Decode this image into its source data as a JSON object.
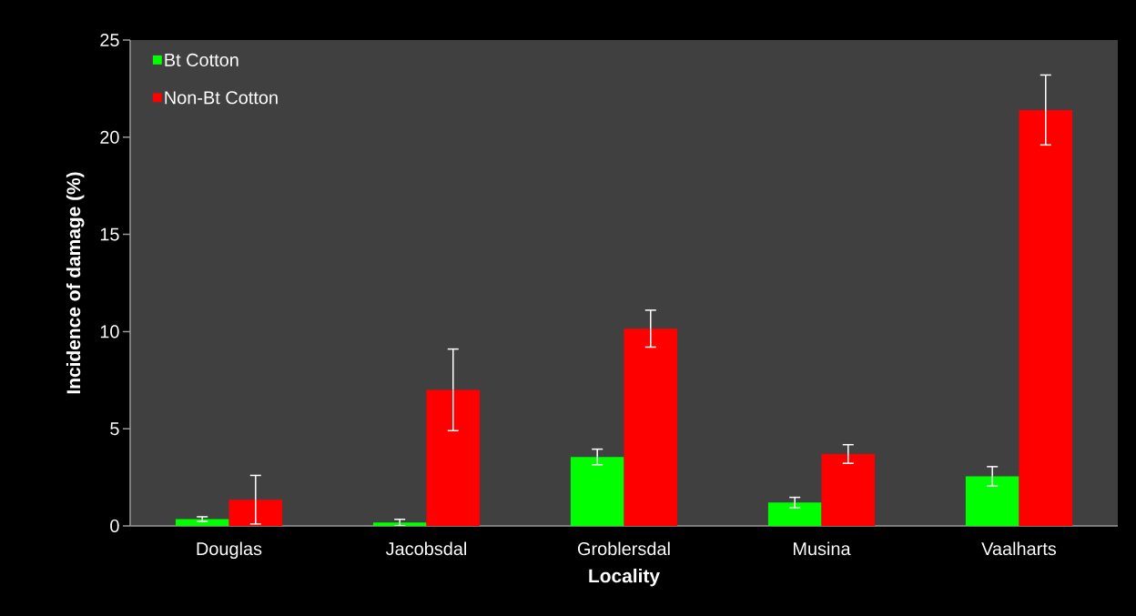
{
  "chart_data": {
    "type": "bar",
    "xlabel": "Locality",
    "ylabel": "Incidence of damage (%)",
    "categories": [
      "Douglas",
      "Jacobsdal",
      "Groblersdal",
      "Musina",
      "Vaalharts"
    ],
    "series": [
      {
        "name": "Bt Cotton",
        "color": "#00ff00",
        "values": [
          0.35,
          0.17,
          3.55,
          1.2,
          2.55
        ],
        "errors": [
          0.12,
          0.17,
          0.4,
          0.27,
          0.5
        ]
      },
      {
        "name": "Non-Bt Cotton",
        "color": "#ff0000",
        "values": [
          1.35,
          7.0,
          10.15,
          3.7,
          21.4
        ],
        "errors": [
          1.25,
          2.1,
          0.95,
          0.48,
          1.8
        ]
      }
    ],
    "ylim": [
      0,
      25
    ],
    "yticks": [
      0,
      5,
      10,
      15,
      20,
      25
    ],
    "grid": false,
    "legend": "top left"
  }
}
